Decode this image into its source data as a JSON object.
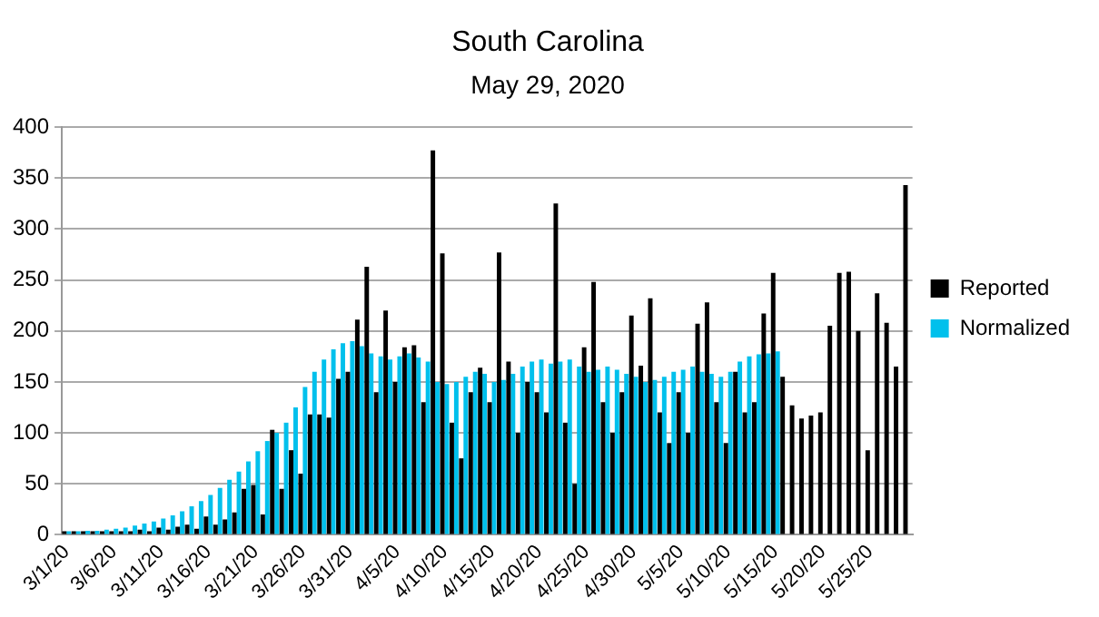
{
  "chart_data": {
    "type": "bar",
    "title": "South Carolina",
    "subtitle": "May 29, 2020",
    "categories": [
      "3/1/20",
      null,
      null,
      null,
      null,
      "3/6/20",
      null,
      null,
      null,
      null,
      "3/11/20",
      null,
      null,
      null,
      null,
      "3/16/20",
      null,
      null,
      null,
      null,
      "3/21/20",
      null,
      null,
      null,
      null,
      "3/26/20",
      null,
      null,
      null,
      null,
      "3/31/20",
      null,
      null,
      null,
      null,
      "4/5/20",
      null,
      null,
      null,
      null,
      "4/10/20",
      null,
      null,
      null,
      null,
      "4/15/20",
      null,
      null,
      null,
      null,
      "4/20/20",
      null,
      null,
      null,
      null,
      "4/25/20",
      null,
      null,
      null,
      null,
      "4/30/20",
      null,
      null,
      null,
      null,
      "5/5/20",
      null,
      null,
      null,
      null,
      "5/10/20",
      null,
      null,
      null,
      null,
      "5/15/20",
      null,
      null,
      null,
      null,
      "5/20/20",
      null,
      null,
      null,
      null,
      "5/25/20",
      null,
      null,
      null,
      null
    ],
    "series": [
      {
        "name": "Reported",
        "color": "#000000",
        "values": [
          0,
          1,
          0,
          2,
          1,
          2,
          3,
          2,
          5,
          3,
          7,
          5,
          8,
          10,
          6,
          18,
          10,
          15,
          22,
          45,
          49,
          20,
          103,
          45,
          83,
          60,
          118,
          118,
          115,
          153,
          160,
          211,
          263,
          140,
          220,
          150,
          184,
          186,
          130,
          377,
          276,
          110,
          75,
          140,
          164,
          130,
          277,
          170,
          100,
          150,
          140,
          120,
          325,
          110,
          50,
          184,
          248,
          130,
          100,
          140,
          215,
          166,
          232,
          120,
          90,
          140,
          100,
          207,
          228,
          130,
          90,
          160,
          120,
          130,
          217,
          257,
          155,
          127,
          114,
          117,
          120,
          205,
          257,
          258,
          200,
          83,
          237,
          208,
          165,
          343
        ]
      },
      {
        "name": "Normalized",
        "color": "#00c0ec",
        "values": [
          3,
          3,
          4,
          4,
          5,
          6,
          7,
          9,
          11,
          13,
          16,
          19,
          23,
          28,
          33,
          39,
          46,
          54,
          62,
          72,
          82,
          92,
          100,
          110,
          125,
          145,
          160,
          172,
          182,
          188,
          190,
          185,
          178,
          175,
          172,
          175,
          178,
          174,
          170,
          150,
          148,
          150,
          155,
          160,
          158,
          150,
          152,
          158,
          165,
          170,
          172,
          168,
          170,
          172,
          165,
          160,
          162,
          165,
          162,
          158,
          155,
          150,
          152,
          155,
          160,
          162,
          165,
          160,
          158,
          155,
          160,
          170,
          175,
          177,
          178,
          180,
          null,
          null,
          null,
          null,
          null,
          null,
          null,
          null,
          null,
          null,
          null,
          null,
          null,
          null
        ]
      }
    ],
    "ylim": [
      0,
      400
    ],
    "yticks": [
      0,
      50,
      100,
      150,
      200,
      250,
      300,
      350,
      400
    ],
    "grid": "y",
    "legend": "right"
  }
}
